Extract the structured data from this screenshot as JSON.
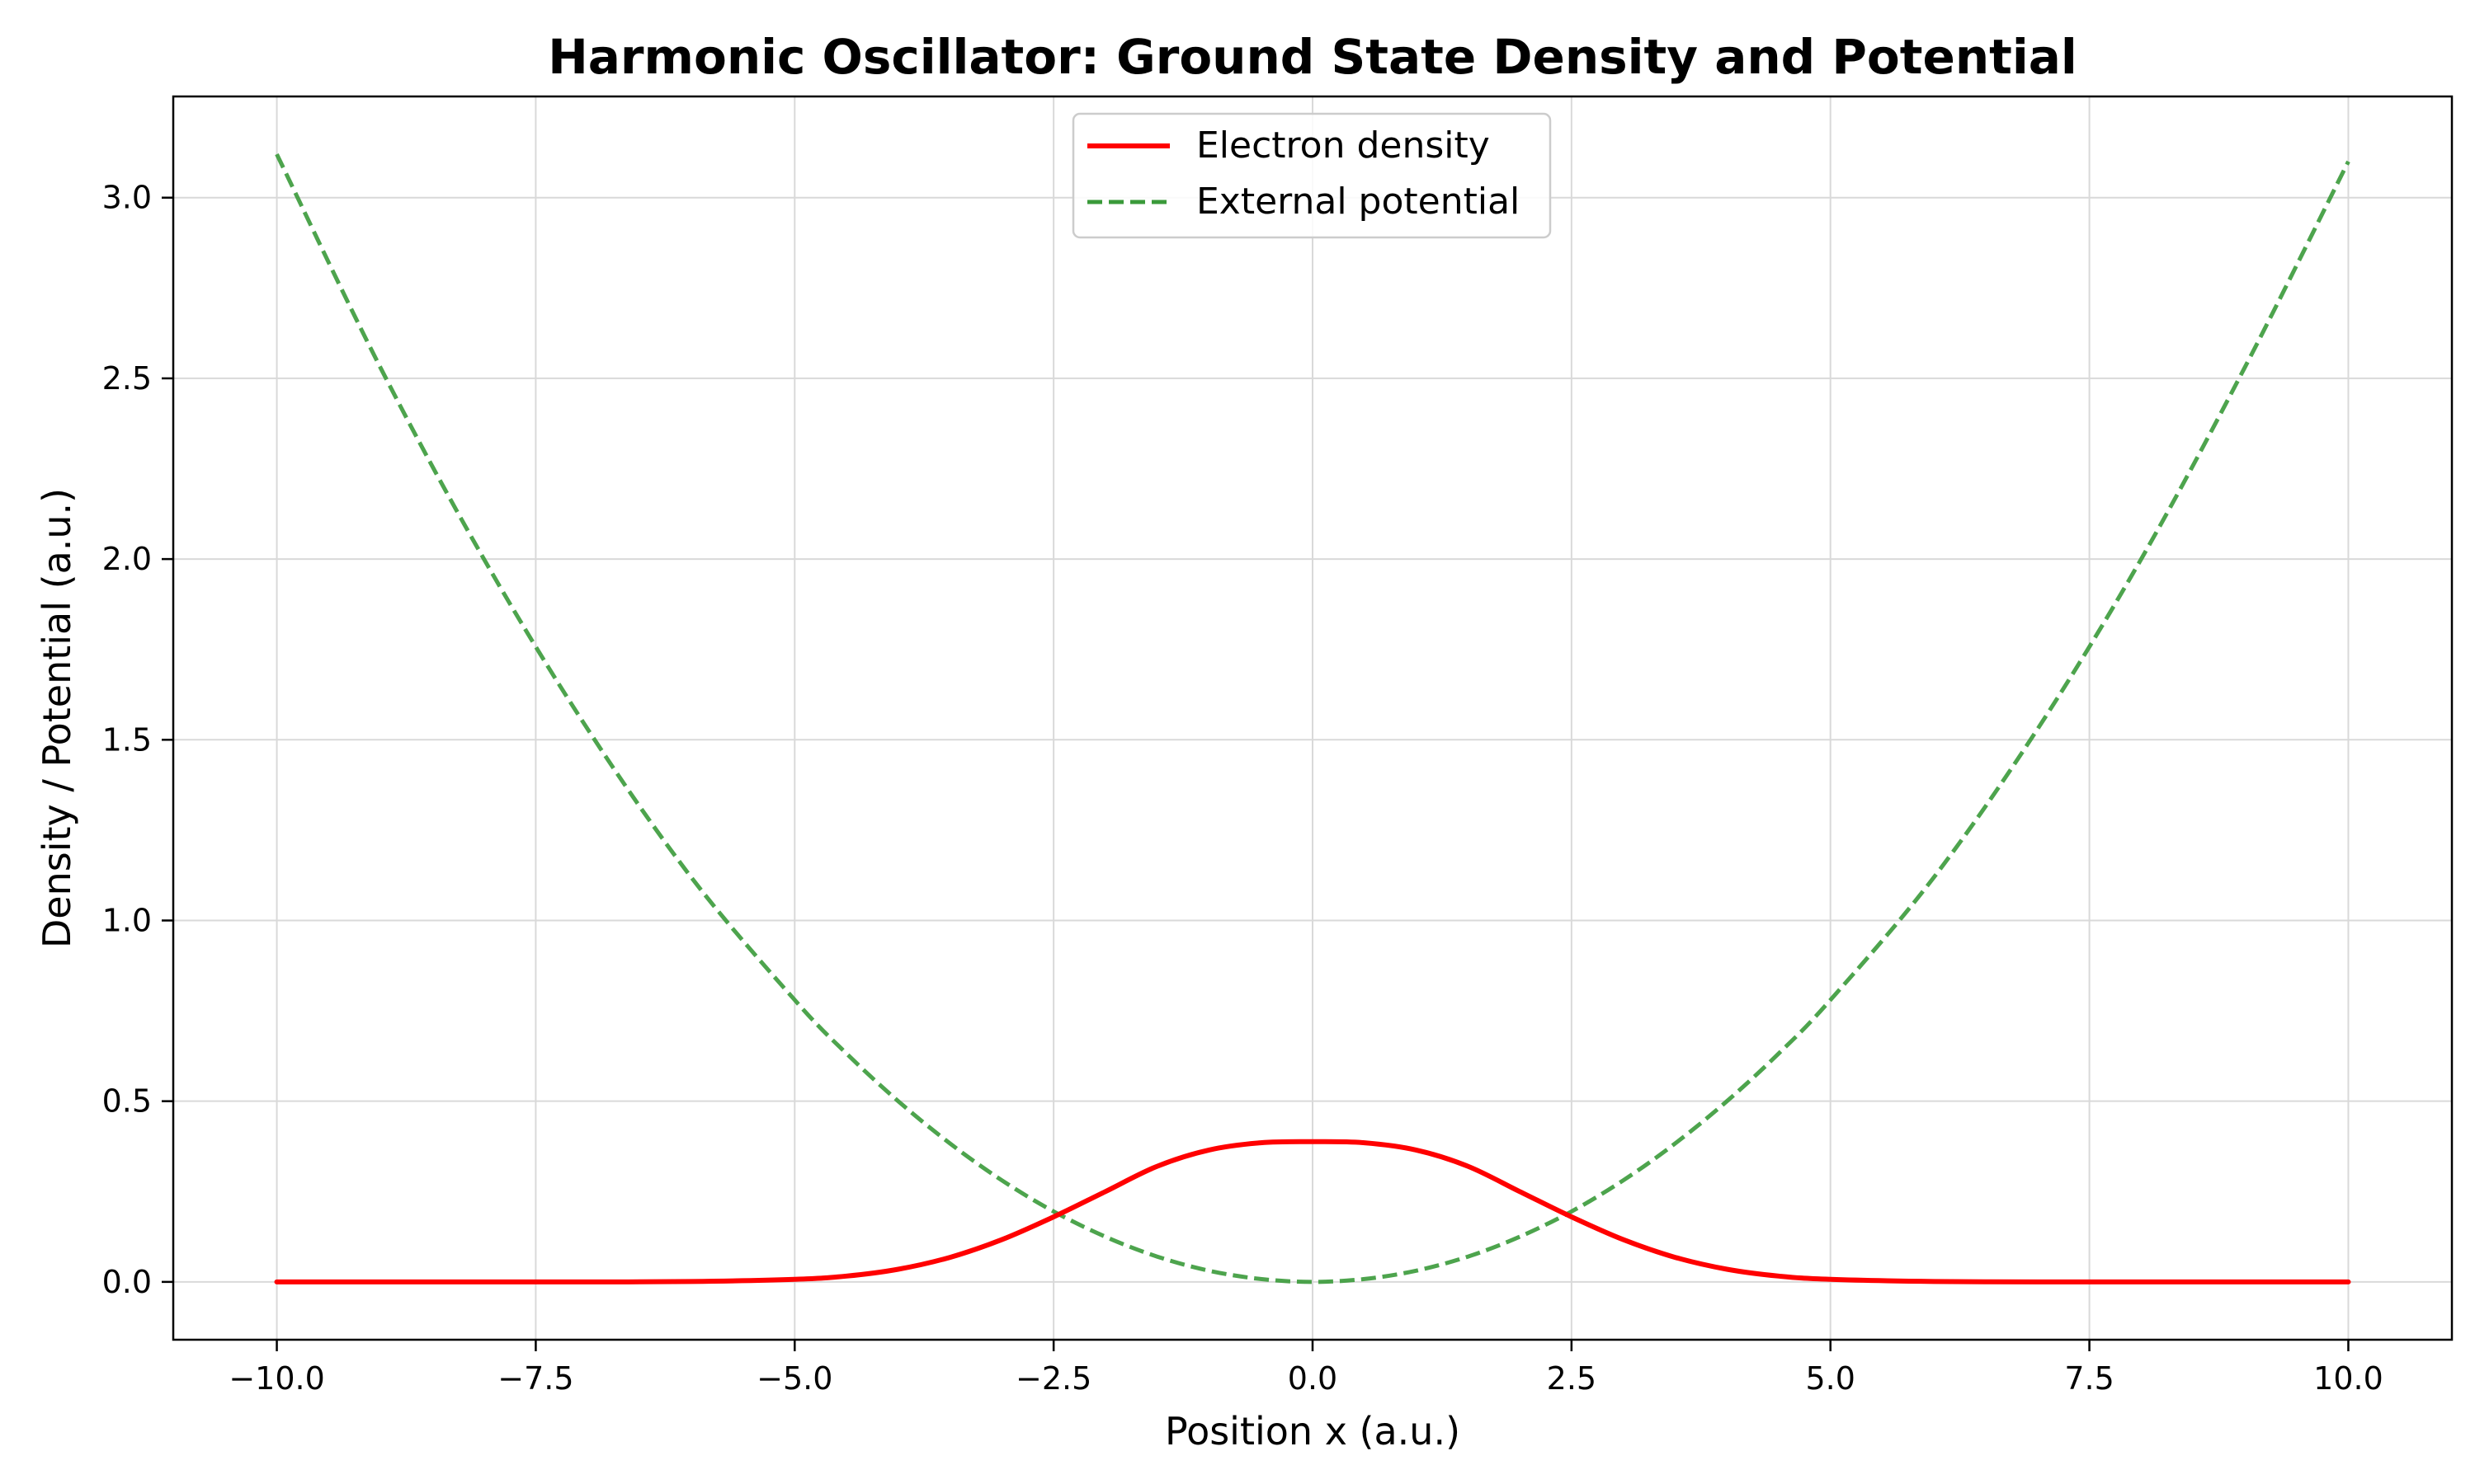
{
  "chart_data": {
    "type": "line",
    "title": "Harmonic Oscillator: Ground State Density and Potential",
    "xlabel": "Position x (a.u.)",
    "ylabel": "Density / Potential (a.u.)",
    "xlim": [
      -11.0,
      11.0
    ],
    "ylim": [
      -0.16,
      3.28
    ],
    "xticks": [
      -10.0,
      -7.5,
      -5.0,
      -2.5,
      0.0,
      2.5,
      5.0,
      7.5,
      10.0
    ],
    "xtick_labels": [
      "−10.0",
      "−7.5",
      "−5.0",
      "−2.5",
      "0.0",
      "2.5",
      "5.0",
      "7.5",
      "10.0"
    ],
    "yticks": [
      0.0,
      0.5,
      1.0,
      1.5,
      2.0,
      2.5,
      3.0
    ],
    "ytick_labels": [
      "0.0",
      "0.5",
      "1.0",
      "1.5",
      "2.0",
      "2.5",
      "3.0"
    ],
    "grid": true,
    "legend_position": "top-center",
    "x": [
      -10.0,
      -9.0,
      -8.0,
      -7.0,
      -6.0,
      -5.0,
      -4.5,
      -4.0,
      -3.5,
      -3.0,
      -2.5,
      -2.0,
      -1.5,
      -1.0,
      -0.5,
      0.0,
      0.5,
      1.0,
      1.5,
      2.0,
      2.5,
      3.0,
      3.5,
      4.0,
      4.5,
      5.0,
      6.0,
      7.0,
      8.0,
      9.0,
      10.0
    ],
    "series": [
      {
        "name": "Electron density",
        "color": "#ff0000",
        "linestyle": "solid",
        "values": [
          0.0,
          0.0,
          0.0,
          0.0,
          0.001,
          0.007,
          0.016,
          0.035,
          0.068,
          0.117,
          0.18,
          0.25,
          0.32,
          0.365,
          0.385,
          0.388,
          0.385,
          0.365,
          0.32,
          0.25,
          0.18,
          0.117,
          0.068,
          0.035,
          0.016,
          0.007,
          0.001,
          0.0,
          0.0,
          0.0,
          0.0
        ]
      },
      {
        "name": "External potential",
        "color": "#3a9a3a",
        "linestyle": "dashed",
        "values": [
          3.12,
          2.53,
          2.0,
          1.53,
          1.12,
          0.78,
          0.632,
          0.5,
          0.383,
          0.281,
          0.195,
          0.125,
          0.07,
          0.031,
          0.008,
          0.0,
          0.008,
          0.031,
          0.07,
          0.125,
          0.195,
          0.281,
          0.383,
          0.5,
          0.632,
          0.78,
          1.12,
          1.53,
          2.0,
          2.53,
          3.1
        ]
      }
    ]
  }
}
